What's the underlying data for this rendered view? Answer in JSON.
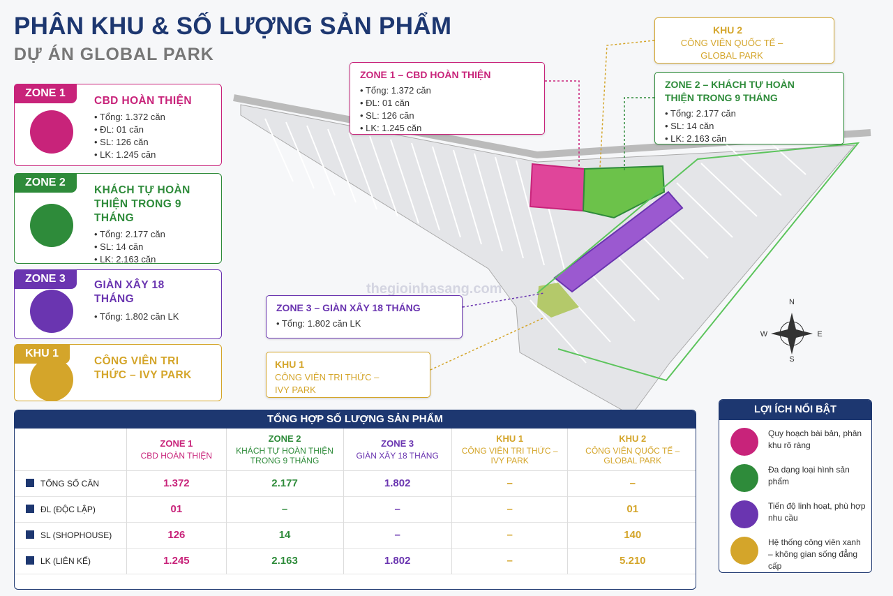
{
  "header": {
    "title": "PHÂN KHU & SỐ LƯỢNG SẢN PHẨM",
    "subtitle": "DỰ ÁN GLOBAL PARK"
  },
  "zones": [
    {
      "tag": "ZONE 1",
      "title": "CBD HOÀN THIỆN",
      "lines": [
        "Tổng: 1.372 căn",
        "ĐL: 01 căn",
        "SL: 126 căn",
        "LK: 1.245 căn"
      ]
    },
    {
      "tag": "ZONE 2",
      "title": "KHÁCH TỰ HOÀN THIỆN TRONG 9 THÁNG",
      "lines": [
        "Tổng: 2.177 căn",
        "SL: 14 căn",
        "LK: 2.163 căn"
      ]
    },
    {
      "tag": "ZONE 3",
      "title": "GIÀN XÂY 18 THÁNG",
      "lines": [
        "Tổng: 1.802 căn LK"
      ]
    },
    {
      "tag": "KHU 1",
      "title": "CÔNG VIÊN TRI THỨC – IVY PARK",
      "lines": []
    }
  ],
  "callouts": [
    {
      "title": "ZONE 1 – CBD HOÀN THIỆN",
      "lines": [
        "• Tổng: 1.372 căn",
        "• ĐL: 01 căn",
        "• SL: 126 căn",
        "• LK: 1.245 căn"
      ]
    },
    {
      "title": "KHU 2",
      "subtitle": "CÔNG VIÊN QUỐC TẾ – GLOBAL PARK",
      "lines": []
    },
    {
      "title": "ZONE 2 – KHÁCH TỰ HOÀN THIỆN TRONG 9 THÁNG",
      "lines": [
        "• Tổng: 2.177 căn",
        "• SL: 14 căn",
        "• LK: 2.163 căn"
      ]
    },
    {
      "title": "ZONE 3 – GIÀN XÂY 18 THÁNG",
      "lines": [
        "• Tổng: 1.802 căn LK"
      ]
    },
    {
      "title": "KHU 1",
      "subtitle": "CÔNG VIÊN TRI THỨC – IVY PARK",
      "lines": []
    }
  ],
  "table": {
    "title": "TỔNG HỢP SỐ LƯỢNG SẢN PHẨM",
    "columns": [
      {
        "name": "ZONE 1",
        "sub": "CBD HOÀN THIỆN"
      },
      {
        "name": "ZONE 2",
        "sub": "KHÁCH TỰ HOÀN THIỆN TRONG 9 THÁNG"
      },
      {
        "name": "ZONE 3",
        "sub": "GIÀN XÂY 18 THÁNG"
      },
      {
        "name": "KHU 1",
        "sub": "CÔNG VIÊN TRI THỨC – IVY PARK"
      },
      {
        "name": "KHU 2",
        "sub": "CÔNG VIÊN QUỐC TẾ – GLOBAL PARK"
      }
    ],
    "rows": [
      {
        "label": "TỔNG SỐ CĂN",
        "cells": [
          "1.372",
          "2.177",
          "1.802",
          "–",
          "–"
        ]
      },
      {
        "label": "ĐL (ĐỘC LẬP)",
        "cells": [
          "01",
          "–",
          "–",
          "–",
          "01"
        ]
      },
      {
        "label": "SL (SHOPHOUSE)",
        "cells": [
          "126",
          "14",
          "–",
          "–",
          "140"
        ]
      },
      {
        "label": "LK (LIÊN KẾ)",
        "cells": [
          "1.245",
          "2.163",
          "1.802",
          "–",
          "5.210"
        ]
      }
    ]
  },
  "benefits": {
    "title": "LỢI ÍCH NỔI BẬT",
    "items": [
      "Quy hoạch bài bản, phân khu rõ ràng",
      "Đa dạng loại hình sản phẩm",
      "Tiến độ linh hoạt, phù hợp nhu cầu",
      "Hệ thống công viên xanh – không gian sống đẳng cấp"
    ]
  },
  "compass": {
    "n": "N",
    "e": "E",
    "s": "S",
    "w": "W"
  },
  "watermark": "thegioinhasang.com"
}
